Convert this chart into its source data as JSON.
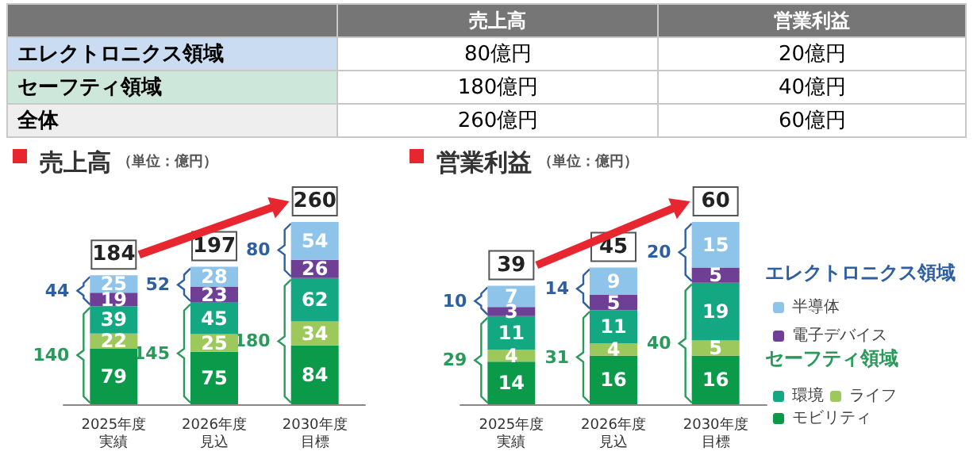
{
  "chart_data": [
    {
      "type": "other",
      "categories": [
        "エレクトロニクス領域",
        "セーフティ領域",
        "全体"
      ],
      "colors": [
        "#c9dcf1",
        "#cde7db",
        "#eeeeee"
      ],
      "series": [
        {
          "name": "売上高",
          "values": [
            80,
            180,
            260
          ],
          "value_labels": [
            "80億円",
            "180億円",
            "260億円"
          ]
        },
        {
          "name": "営業利益",
          "values": [
            20,
            40,
            60
          ],
          "value_labels": [
            "20億円",
            "40億円",
            "60億円"
          ]
        }
      ]
    },
    {
      "type": "bar",
      "title": "売上高",
      "subtitle": "（単位：億円）",
      "stacked": true,
      "data_labels": true,
      "legend": false,
      "categories": [
        "2025年度実績",
        "2026年度見込",
        "2030年度目標"
      ],
      "series": [
        {
          "color": "#0a9a4a",
          "values": [
            79,
            75,
            84
          ]
        },
        {
          "color": "#9cc85c",
          "values": [
            22,
            25,
            34
          ]
        },
        {
          "color": "#14a882",
          "values": [
            39,
            45,
            62
          ]
        },
        {
          "color": "#6f3f96",
          "values": [
            19,
            23,
            26
          ]
        },
        {
          "color": "#8ec4ea",
          "values": [
            25,
            28,
            54
          ]
        }
      ],
      "totals": [
        "184",
        "197",
        "260"
      ],
      "annotations": [
        "140",
        "44",
        "145",
        "52",
        "180",
        "80"
      ]
    },
    {
      "type": "bar",
      "title": "営業利益",
      "subtitle": "（単位：億円）",
      "stacked": true,
      "data_labels": true,
      "legend": "right",
      "categories": [
        "2025年度実績",
        "2026年度見込",
        "2030年度目標"
      ],
      "series": [
        {
          "name": "モビリティ",
          "color": "#0a9a4a",
          "values": [
            14,
            16,
            16
          ]
        },
        {
          "name": "ライフ",
          "color": "#9cc85c",
          "values": [
            4,
            4,
            5
          ]
        },
        {
          "name": "環境",
          "color": "#14a882",
          "values": [
            11,
            11,
            19
          ]
        },
        {
          "name": "電子デバイス",
          "color": "#6f3f96",
          "values": [
            3,
            5,
            5
          ]
        },
        {
          "name": "半導体",
          "color": "#8ec4ea",
          "values": [
            7,
            9,
            15
          ]
        }
      ],
      "totals": [
        "39",
        "45",
        "60"
      ],
      "annotations": [
        "29",
        "10",
        "31",
        "14",
        "40",
        "20",
        "エレクトロニクス領域",
        "セーフティ領域"
      ]
    }
  ]
}
